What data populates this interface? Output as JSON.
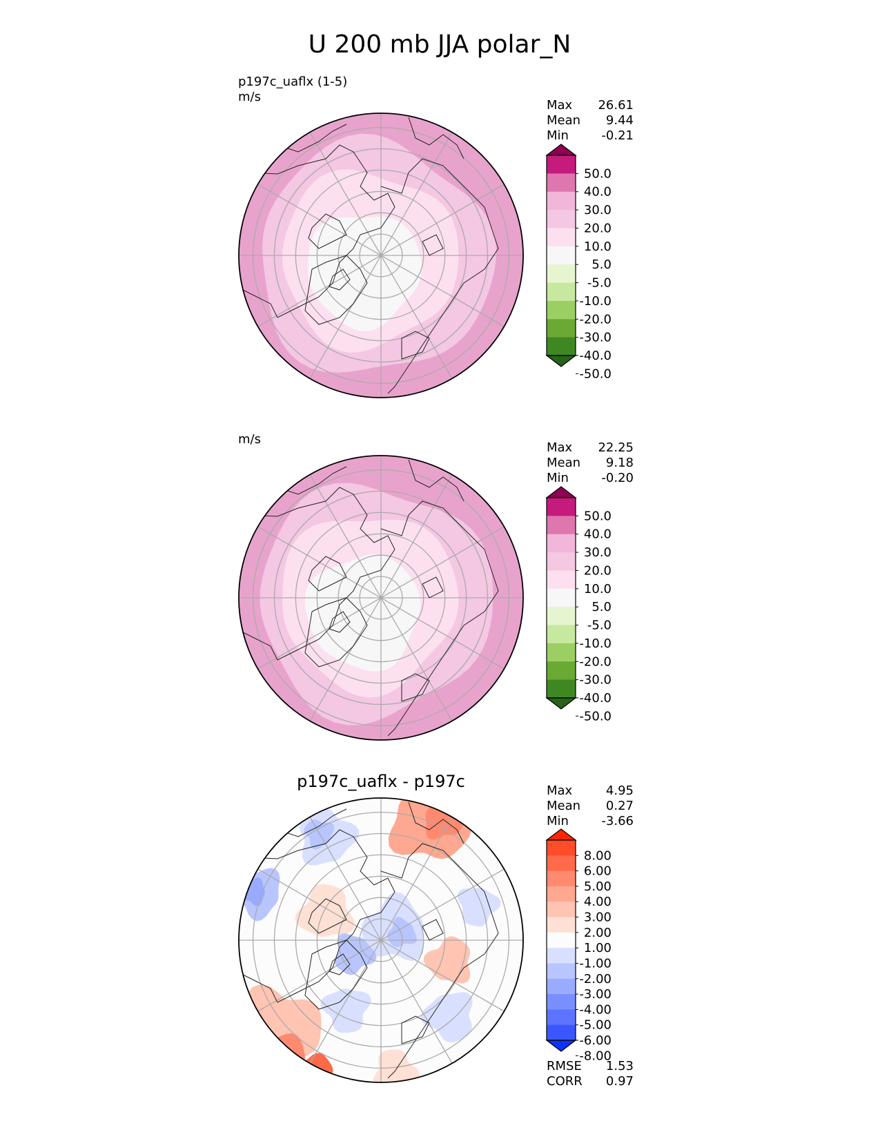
{
  "figure": {
    "title": "U 200 mb JJA polar_N"
  },
  "chart_data": [
    {
      "type": "heatmap",
      "projection": "north polar stereographic",
      "label": "p197c_uaflx (1-5)",
      "units": "m/s",
      "title": "",
      "stats": [
        {
          "name": "Max",
          "value": "26.61"
        },
        {
          "name": "Mean",
          "value": "9.44"
        },
        {
          "name": "Min",
          "value": "-0.21"
        }
      ],
      "colorbar": {
        "ticks": [
          "50.0",
          "40.0",
          "30.0",
          "20.0",
          "10.0",
          "5.0",
          "-5.0",
          "-10.0",
          "-20.0",
          "-30.0",
          "-40.0",
          "-50.0"
        ],
        "colors_top_to_bottom": [
          "#8e0152",
          "#c51b7d",
          "#de77ae",
          "#f1b6da",
          "#f4c7e3",
          "#fde0ef",
          "#f7f7f7",
          "#e6f5d0",
          "#c7e89f",
          "#9ccf63",
          "#6aa932",
          "#3f8723",
          "#276419"
        ]
      },
      "field_bands": [
        {
          "value": 2,
          "color": "#f7f7f7"
        },
        {
          "value": 8,
          "color": "#fde0ef"
        },
        {
          "value": 15,
          "color": "#f4c7e3"
        },
        {
          "value": 24,
          "color": "#e8a3cc"
        }
      ],
      "footer": []
    },
    {
      "type": "heatmap",
      "projection": "north polar stereographic",
      "label": "",
      "units": "m/s",
      "title": "",
      "stats": [
        {
          "name": "Max",
          "value": "22.25"
        },
        {
          "name": "Mean",
          "value": "9.18"
        },
        {
          "name": "Min",
          "value": "-0.20"
        }
      ],
      "colorbar": {
        "ticks": [
          "50.0",
          "40.0",
          "30.0",
          "20.0",
          "10.0",
          "5.0",
          "-5.0",
          "-10.0",
          "-20.0",
          "-30.0",
          "-40.0",
          "-50.0"
        ],
        "colors_top_to_bottom": [
          "#8e0152",
          "#c51b7d",
          "#de77ae",
          "#f1b6da",
          "#f4c7e3",
          "#fde0ef",
          "#f7f7f7",
          "#e6f5d0",
          "#c7e89f",
          "#9ccf63",
          "#6aa932",
          "#3f8723",
          "#276419"
        ]
      },
      "field_bands": [
        {
          "value": 2,
          "color": "#f7f7f7"
        },
        {
          "value": 8,
          "color": "#fde0ef"
        },
        {
          "value": 15,
          "color": "#f4c7e3"
        },
        {
          "value": 21,
          "color": "#e8a3cc"
        }
      ],
      "footer": []
    },
    {
      "type": "heatmap",
      "projection": "north polar stereographic",
      "label": "",
      "units": "",
      "title": "p197c_uaflx - p197c",
      "stats": [
        {
          "name": "Max",
          "value": "4.95"
        },
        {
          "name": "Mean",
          "value": "0.27"
        },
        {
          "name": "Min",
          "value": "-3.66"
        }
      ],
      "colorbar": {
        "ticks": [
          "8.00",
          "6.00",
          "5.00",
          "4.00",
          "3.00",
          "2.00",
          "1.00",
          "-1.00",
          "-2.00",
          "-3.00",
          "-4.00",
          "-5.00",
          "-6.00",
          "-8.00"
        ],
        "colors_top_to_bottom": [
          "#ff2500",
          "#ff4c29",
          "#ff6b4a",
          "#ff8a70",
          "#ffa891",
          "#ffc4b2",
          "#ffe0d5",
          "#fcfcfc",
          "#d9e0ff",
          "#b8c5ff",
          "#9aabff",
          "#7a8fff",
          "#5c74ff",
          "#3a57ff",
          "#0a33ff"
        ]
      },
      "field_bands": [],
      "footer": [
        {
          "name": "RMSE",
          "value": "1.53"
        },
        {
          "name": "CORR",
          "value": "0.97"
        }
      ]
    }
  ]
}
